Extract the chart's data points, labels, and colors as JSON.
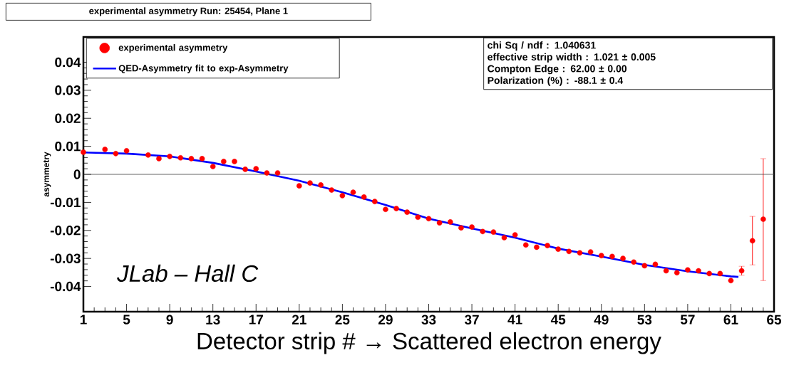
{
  "chart_data": {
    "type": "scatter",
    "title": "experimental asymmetry Run: 25454, Plane 1",
    "xlabel": "Detector strip # → Scattered electron energy",
    "ylabel": "asymmetry",
    "xlim": [
      1,
      65
    ],
    "xticks": [
      1,
      5,
      9,
      13,
      17,
      21,
      25,
      29,
      33,
      37,
      41,
      45,
      49,
      53,
      57,
      61,
      65
    ],
    "ylim": [
      -0.049,
      0.049
    ],
    "yticks": [
      -0.04,
      -0.03,
      -0.02,
      -0.01,
      0,
      0.01,
      0.02,
      0.03,
      0.04
    ],
    "legend": "top left",
    "ref_lines": [
      {
        "axis": "y",
        "value": 0
      }
    ],
    "annotations": [
      "chi Sq / ndf : 1.040631",
      "effective strip width : 1.021 ± 0.005",
      "Compton Edge : 62.00 ± 0.00",
      "Polarization (%) : -88.1 ± 0.4",
      "JLab – Hall C"
    ],
    "series": [
      {
        "name": "experimental asymmetry",
        "type": "scatter",
        "marker": "circle",
        "color": "#ff0000",
        "x": [
          1,
          3,
          4,
          5,
          7,
          8,
          9,
          10,
          11,
          12,
          13,
          14,
          15,
          16,
          17,
          18,
          19,
          21,
          22,
          23,
          24,
          25,
          26,
          27,
          28,
          29,
          30,
          31,
          32,
          33,
          34,
          35,
          36,
          37,
          38,
          39,
          40,
          41,
          42,
          43,
          44,
          45,
          46,
          47,
          48,
          49,
          50,
          51,
          52,
          53,
          54,
          55,
          56,
          57,
          58,
          59,
          60,
          61,
          62,
          63,
          64
        ],
        "values": [
          0.0079,
          0.0089,
          0.0074,
          0.0084,
          0.0069,
          0.0056,
          0.0064,
          0.0059,
          0.0056,
          0.0056,
          0.0028,
          0.0046,
          0.0046,
          0.0018,
          0.002,
          0.0005,
          0.0005,
          -0.0041,
          -0.0031,
          -0.0038,
          -0.0056,
          -0.0076,
          -0.0064,
          -0.0081,
          -0.0097,
          -0.0125,
          -0.0122,
          -0.0135,
          -0.0153,
          -0.0158,
          -0.0173,
          -0.017,
          -0.0191,
          -0.0188,
          -0.0204,
          -0.0206,
          -0.0226,
          -0.0216,
          -0.0252,
          -0.026,
          -0.0254,
          -0.0267,
          -0.0275,
          -0.028,
          -0.0277,
          -0.029,
          -0.0293,
          -0.03,
          -0.0313,
          -0.0326,
          -0.0321,
          -0.0344,
          -0.0351,
          -0.0341,
          -0.0344,
          -0.0354,
          -0.0354,
          -0.0379,
          -0.0344,
          -0.0237,
          -0.016
        ],
        "errors": [
          null,
          null,
          null,
          null,
          null,
          null,
          null,
          null,
          null,
          null,
          null,
          null,
          null,
          null,
          null,
          null,
          null,
          null,
          null,
          null,
          null,
          null,
          null,
          null,
          null,
          null,
          null,
          null,
          null,
          null,
          null,
          null,
          null,
          null,
          null,
          null,
          null,
          null,
          null,
          null,
          null,
          null,
          null,
          null,
          null,
          null,
          null,
          null,
          null,
          null,
          null,
          null,
          null,
          null,
          null,
          null,
          null,
          null,
          0.0016,
          [
            -0.0323,
            -0.015
          ],
          [
            -0.0379,
            0.0056
          ]
        ]
      },
      {
        "name": "QED-Asymmetry fit to exp-Asymmetry",
        "type": "line",
        "marker": "none",
        "line_style": "solid",
        "color": "#0000ff",
        "x": [
          1,
          5,
          9,
          13,
          17,
          21,
          25,
          29,
          33,
          37,
          41,
          45,
          49,
          53,
          57,
          61,
          61.7
        ],
        "values": [
          0.0078,
          0.0074,
          0.0064,
          0.0041,
          0.001,
          -0.0023,
          -0.0064,
          -0.0109,
          -0.0158,
          -0.0193,
          -0.0226,
          -0.0265,
          -0.0293,
          -0.0323,
          -0.0346,
          -0.0364,
          -0.0366
        ]
      }
    ]
  }
}
